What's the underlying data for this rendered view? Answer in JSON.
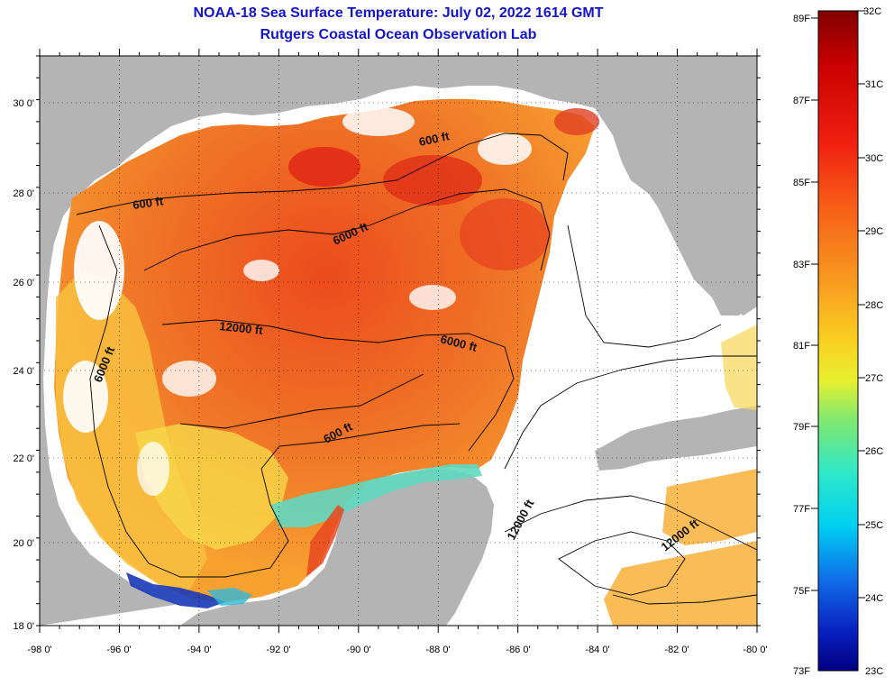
{
  "title": {
    "line1": "NOAA-18 Sea Surface Temperature:  July 02, 2022 1614 GMT",
    "line2": "Rutgers Coastal Ocean Observation Lab"
  },
  "map": {
    "lon_ticks": [
      "-98 0'",
      "-96 0'",
      "-94 0'",
      "-92 0'",
      "-90 0'",
      "-88 0'",
      "-86 0'",
      "-84 0'",
      "-82 0'",
      "-80 0'"
    ],
    "lat_ticks": [
      "30 0'",
      "28 0'",
      "26 0'",
      "24 0'",
      "22 0'",
      "20 0'",
      "18 0'"
    ],
    "isobath_labels": [
      "600 ft",
      "600 ft",
      "600 ft",
      "6000 ft",
      "6000 ft",
      "6000 ft",
      "12000 ft",
      "12000 ft",
      "12000 ft"
    ],
    "colors": {
      "land": "#b4b4b4",
      "cloud": "#ffffff",
      "warm": "#f06420",
      "hot": "#e02818",
      "mid": "#f8a030",
      "cool": "#f8e040",
      "cold": "#20c8d8",
      "coldest": "#0828a8"
    }
  },
  "colorbar": {
    "fahrenheit": [
      "89F",
      "87F",
      "85F",
      "83F",
      "81F",
      "79F",
      "77F",
      "75F",
      "73F"
    ],
    "celsius": [
      "32C",
      "31C",
      "30C",
      "29C",
      "28C",
      "27C",
      "26C",
      "25C",
      "24C",
      "23C"
    ]
  }
}
